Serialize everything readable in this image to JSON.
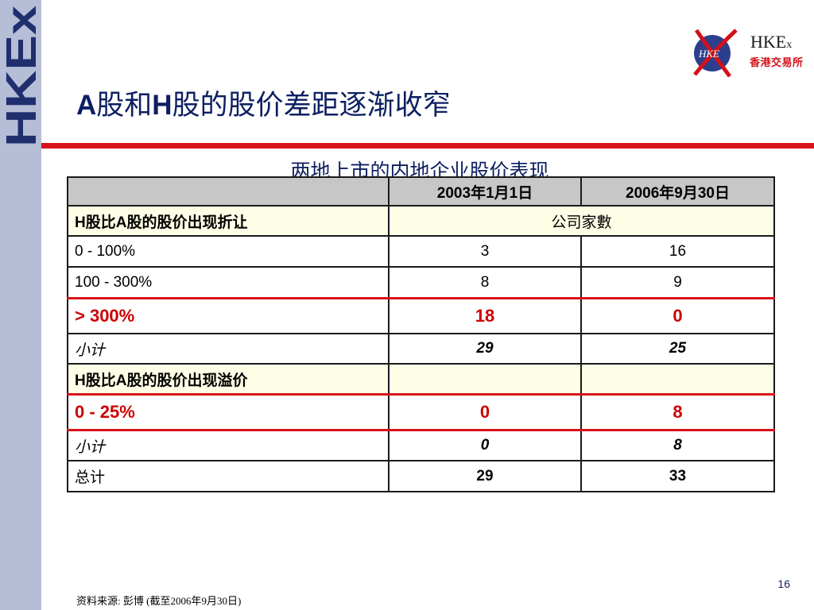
{
  "brand": {
    "sidebar_text": "HKEx",
    "logo_badge": "HKE",
    "logo_name": "HKE",
    "logo_name_small": "x",
    "logo_cn": "香港交易所"
  },
  "title": {
    "part1": "A",
    "part2": "股和",
    "part3": "H",
    "part4": "股的股价差距逐渐收窄"
  },
  "subtitle": "两地上市的内地企业股价表现",
  "table": {
    "headers": [
      "",
      "2003年1月1日",
      "2006年9月30日"
    ],
    "section1_label": "H股比A股的股价出现折让",
    "section1_span": "公司家數",
    "rows1": [
      {
        "label": "0 - 100%",
        "v1": "3",
        "v2": "16"
      },
      {
        "label": "100 - 300%",
        "v1": "8",
        "v2": "9"
      }
    ],
    "red1": {
      "label": "> 300%",
      "v1": "18",
      "v2": "0"
    },
    "sub1": {
      "label": "小计",
      "v1": "29",
      "v2": "25"
    },
    "section2_label": "H股比A股的股价出现溢价",
    "red2": {
      "label": "0 - 25%",
      "v1": "0",
      "v2": "8"
    },
    "sub2": {
      "label": "小计",
      "v1": "0",
      "v2": "8"
    },
    "total": {
      "label": "总计",
      "v1": "29",
      "v2": "33"
    }
  },
  "footnote": "资料来源: 彭博 (截至2006年9月30日)",
  "page_number": "16",
  "colors": {
    "accent_red": "#d7121a",
    "title_navy": "#0d1f62",
    "sidebar": "#b6bdd6",
    "section_fill": "#fefde6"
  }
}
